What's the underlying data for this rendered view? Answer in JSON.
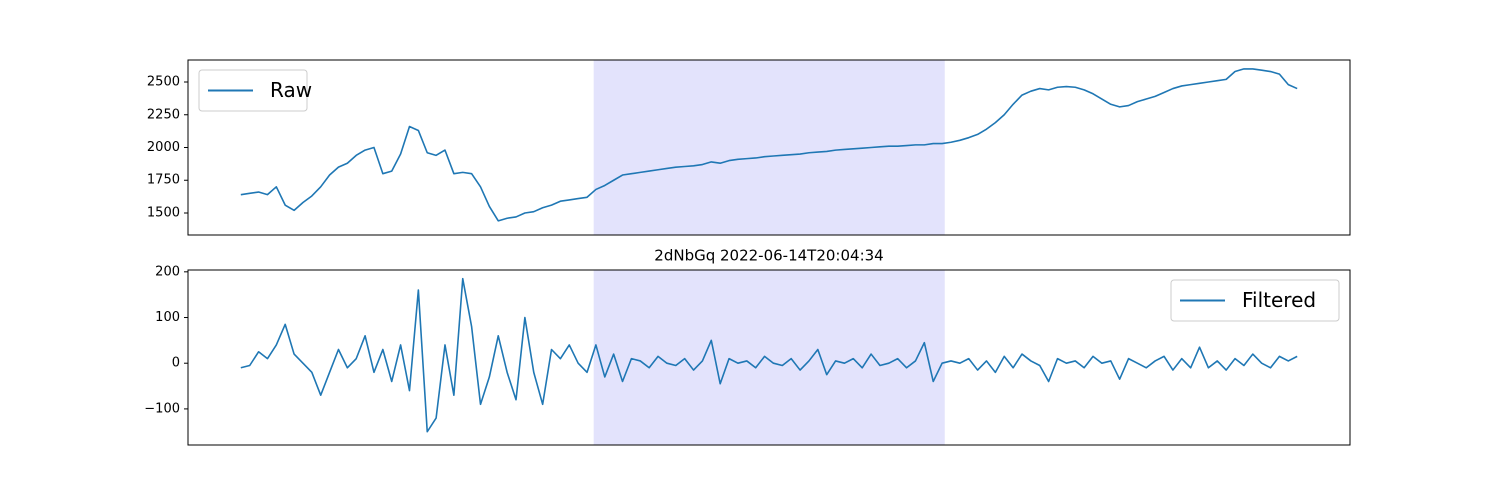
{
  "chart_data": [
    {
      "type": "line",
      "series": [
        {
          "name": "Raw",
          "color": "#1f77b4",
          "values": [
            1640,
            1650,
            1660,
            1640,
            1700,
            1560,
            1520,
            1580,
            1630,
            1700,
            1790,
            1850,
            1880,
            1940,
            1980,
            2000,
            1800,
            1820,
            1950,
            2160,
            2130,
            1960,
            1940,
            1980,
            1800,
            1810,
            1800,
            1700,
            1550,
            1440,
            1460,
            1470,
            1500,
            1510,
            1540,
            1560,
            1590,
            1600,
            1610,
            1620,
            1680,
            1710,
            1750,
            1790,
            1800,
            1810,
            1820,
            1830,
            1840,
            1850,
            1855,
            1860,
            1870,
            1890,
            1880,
            1900,
            1910,
            1915,
            1920,
            1930,
            1935,
            1940,
            1945,
            1950,
            1960,
            1965,
            1970,
            1980,
            1985,
            1990,
            1995,
            2000,
            2005,
            2010,
            2010,
            2015,
            2020,
            2020,
            2030,
            2030,
            2040,
            2055,
            2075,
            2100,
            2140,
            2190,
            2250,
            2330,
            2400,
            2430,
            2450,
            2440,
            2460,
            2465,
            2460,
            2440,
            2410,
            2370,
            2330,
            2310,
            2320,
            2350,
            2370,
            2390,
            2420,
            2450,
            2470,
            2480,
            2490,
            2500,
            2510,
            2520,
            2580,
            2600,
            2600,
            2590,
            2580,
            2560,
            2480,
            2450
          ]
        }
      ],
      "xlim": [
        -5.95,
        124.95
      ],
      "ylim": [
        1332,
        2668
      ],
      "yticks": [
        1500,
        1750,
        2000,
        2250,
        2500
      ],
      "span": {
        "start": 39.75,
        "end": 79.3,
        "color": "#e3e3fc"
      },
      "legend": "upper left"
    },
    {
      "type": "line",
      "title": "2dNbGq 2022-06-14T20:04:34",
      "series": [
        {
          "name": "Filtered",
          "color": "#1f77b4",
          "values": [
            -10,
            -5,
            25,
            10,
            40,
            85,
            20,
            0,
            -20,
            -70,
            -20,
            30,
            -10,
            10,
            60,
            -20,
            30,
            -40,
            40,
            -60,
            160,
            -150,
            -120,
            40,
            -70,
            185,
            80,
            -90,
            -30,
            60,
            -20,
            -80,
            100,
            -20,
            -90,
            30,
            10,
            40,
            0,
            -20,
            40,
            -30,
            20,
            -40,
            10,
            5,
            -10,
            15,
            0,
            -5,
            10,
            -15,
            5,
            50,
            -45,
            10,
            0,
            5,
            -10,
            15,
            0,
            -5,
            10,
            -15,
            5,
            30,
            -25,
            5,
            0,
            10,
            -10,
            20,
            -5,
            0,
            10,
            -10,
            5,
            45,
            -40,
            0,
            5,
            0,
            10,
            -15,
            5,
            -20,
            15,
            -10,
            20,
            5,
            -5,
            -40,
            10,
            0,
            5,
            -10,
            15,
            0,
            5,
            -35,
            10,
            0,
            -10,
            5,
            15,
            -15,
            10,
            -10,
            35,
            -10,
            5,
            -15,
            10,
            -5,
            20,
            0,
            -10,
            15,
            5,
            15
          ]
        }
      ],
      "xlim": [
        -5.95,
        124.95
      ],
      "ylim": [
        -179,
        204
      ],
      "yticks": [
        {
          "value": -100,
          "label": "−100"
        },
        0,
        100,
        200
      ],
      "span": {
        "start": 39.75,
        "end": 79.3,
        "color": "#e3e3fc"
      },
      "legend": "upper right"
    }
  ]
}
